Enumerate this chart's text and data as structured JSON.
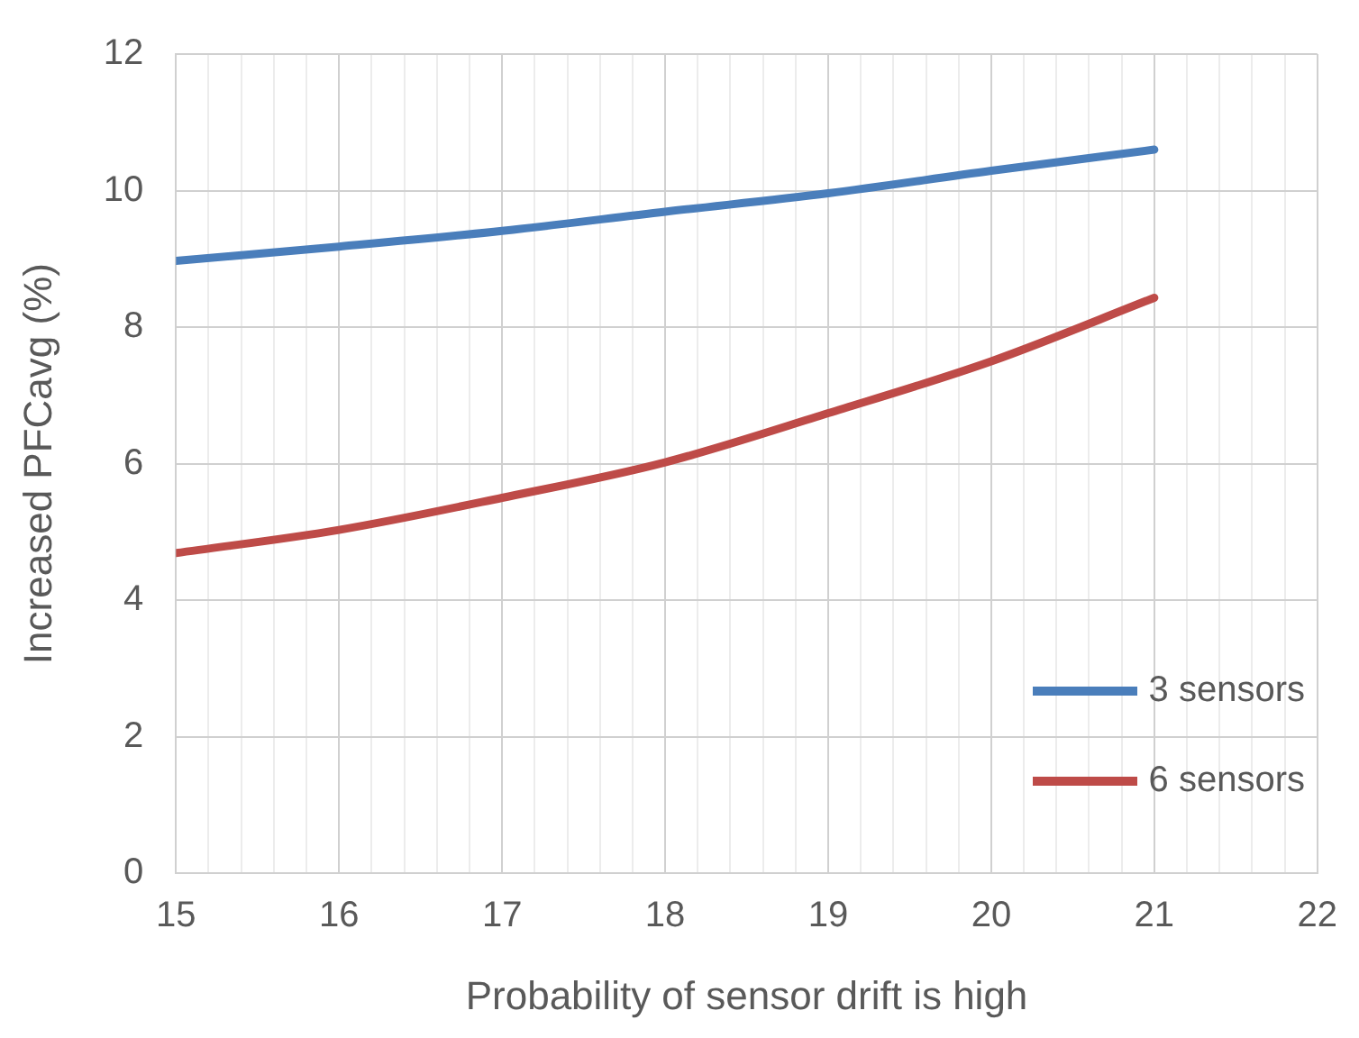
{
  "chart_data": {
    "type": "line",
    "xlabel": "Probability of sensor drift is high",
    "ylabel": "Increased PFCavg (%)",
    "x": [
      15,
      16,
      17,
      18,
      19,
      20,
      21
    ],
    "series": [
      {
        "name": "3 sensors",
        "color": "#4a7ebb",
        "values": [
          8.97,
          9.18,
          9.41,
          9.69,
          9.96,
          10.29,
          10.6
        ]
      },
      {
        "name": "6 sensors",
        "color": "#be4b48",
        "values": [
          4.69,
          5.03,
          5.5,
          6.02,
          6.74,
          7.5,
          8.43
        ]
      }
    ],
    "xlim": [
      15,
      22
    ],
    "xticks": [
      15,
      {
        "value": 15.2,
        "label": null
      },
      {
        "value": 15.4,
        "label": null
      },
      {
        "value": 15.6,
        "label": null
      },
      {
        "value": 15.8,
        "label": null
      },
      16,
      {
        "value": 16.2,
        "label": null
      },
      {
        "value": 16.4,
        "label": null
      },
      {
        "value": 16.6,
        "label": null
      },
      {
        "value": 16.8,
        "label": null
      },
      17,
      {
        "value": 17.2,
        "label": null
      },
      {
        "value": 17.4,
        "label": null
      },
      {
        "value": 17.6,
        "label": null
      },
      {
        "value": 17.8,
        "label": null
      },
      18,
      {
        "value": 18.2,
        "label": null
      },
      {
        "value": 18.4,
        "label": null
      },
      {
        "value": 18.6,
        "label": null
      },
      {
        "value": 18.8,
        "label": null
      },
      19,
      {
        "value": 19.2,
        "label": null
      },
      {
        "value": 19.4,
        "label": null
      },
      {
        "value": 19.6,
        "label": null
      },
      {
        "value": 19.8,
        "label": null
      },
      20,
      {
        "value": 20.2,
        "label": null
      },
      {
        "value": 20.4,
        "label": null
      },
      {
        "value": 20.6,
        "label": null
      },
      {
        "value": 20.8,
        "label": null
      },
      21,
      {
        "value": 21.2,
        "label": null
      },
      {
        "value": 21.4,
        "label": null
      },
      {
        "value": 21.6,
        "label": null
      },
      {
        "value": 21.8,
        "label": null
      },
      22
    ],
    "ylim": [
      0,
      12
    ],
    "yticks": [
      0,
      2,
      4,
      6,
      8,
      10,
      12
    ],
    "grid": true,
    "legend": "bottom right",
    "marker": "none",
    "line_style": "solid"
  }
}
